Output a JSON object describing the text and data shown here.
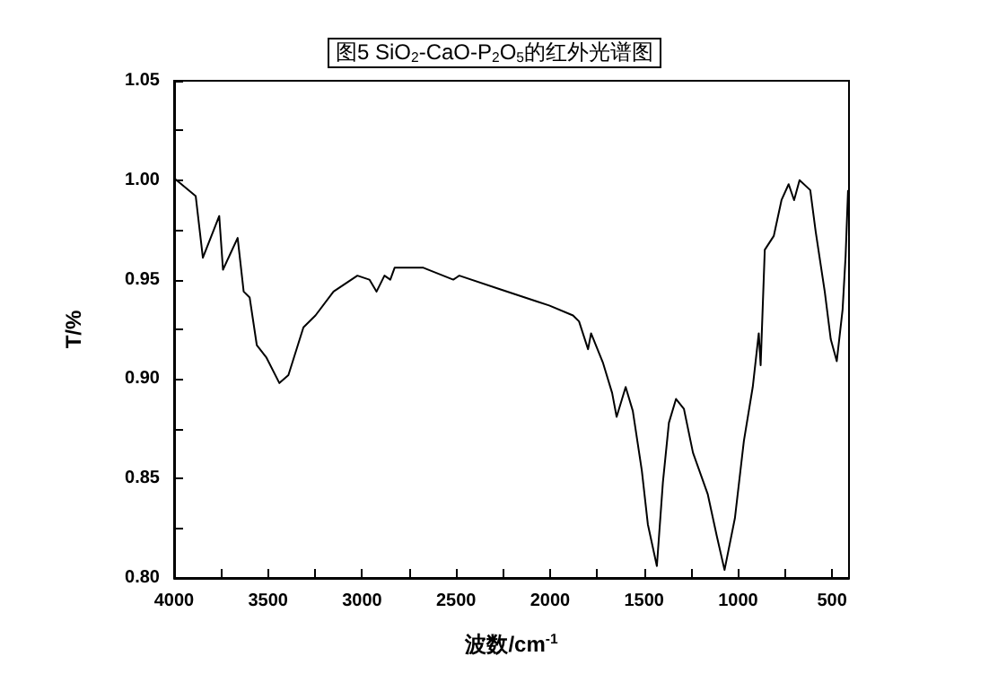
{
  "chart_data": {
    "type": "line",
    "title": "图5 SiO$_{2}$-CaO-P$_{2}$O$_{5}$的红外光谱图",
    "xlabel": "波数/cm$^{-1}$",
    "ylabel": "T/%",
    "xlim": [
      4000,
      410
    ],
    "xticks": [
      4000,
      3500,
      3000,
      2500,
      2000,
      1500,
      1000,
      500,
      {
        "value": 3750,
        "label": null
      },
      {
        "value": 3250,
        "label": null
      },
      {
        "value": 2750,
        "label": null
      },
      {
        "value": 2250,
        "label": null
      },
      {
        "value": 1750,
        "label": null
      },
      {
        "value": 1250,
        "label": null
      },
      {
        "value": 750,
        "label": null
      }
    ],
    "ylim": [
      0.8,
      1.05
    ],
    "yticks": [
      {
        "value": 0.8,
        "label": "0.80"
      },
      {
        "value": 0.85,
        "label": "0.85"
      },
      {
        "value": 0.9,
        "label": "0.90"
      },
      {
        "value": 0.95,
        "label": "0.95"
      },
      {
        "value": 1.0,
        "label": "1.00"
      },
      {
        "value": 1.05,
        "label": "1.05"
      },
      {
        "value": 0.825,
        "label": null
      },
      {
        "value": 0.875,
        "label": null
      },
      {
        "value": 0.925,
        "label": null
      },
      {
        "value": 0.975,
        "label": null
      },
      {
        "value": 1.025,
        "label": null
      }
    ],
    "grid": false,
    "marker": "none",
    "line_style": "solid",
    "series": [
      {
        "color": "#000000",
        "x": [
          4000,
          3885,
          3847,
          3760,
          3740,
          3662,
          3630,
          3598,
          3560,
          3510,
          3440,
          3392,
          3312,
          3248,
          3152,
          3025,
          2961,
          2923,
          2881,
          2850,
          2827,
          2674,
          2515,
          2483,
          2260,
          2069,
          2005,
          1878,
          1846,
          1798,
          1782,
          1718,
          1670,
          1646,
          1598,
          1560,
          1512,
          1480,
          1432,
          1400,
          1368,
          1330,
          1288,
          1240,
          1161,
          1113,
          1072,
          1017,
          969,
          922,
          890,
          880,
          858,
          810,
          769,
          731,
          702,
          673,
          616,
          587,
          539,
          507,
          475,
          444,
          428,
          415
        ],
        "values": [
          1.001,
          0.992,
          0.961,
          0.982,
          0.955,
          0.971,
          0.944,
          0.941,
          0.917,
          0.911,
          0.898,
          0.902,
          0.926,
          0.932,
          0.944,
          0.952,
          0.95,
          0.944,
          0.952,
          0.95,
          0.956,
          0.956,
          0.95,
          0.952,
          0.945,
          0.939,
          0.937,
          0.932,
          0.929,
          0.915,
          0.923,
          0.908,
          0.893,
          0.881,
          0.896,
          0.884,
          0.854,
          0.827,
          0.806,
          0.848,
          0.878,
          0.89,
          0.885,
          0.863,
          0.842,
          0.821,
          0.804,
          0.83,
          0.869,
          0.896,
          0.923,
          0.907,
          0.965,
          0.972,
          0.99,
          0.998,
          0.99,
          1.0,
          0.995,
          0.974,
          0.944,
          0.92,
          0.909,
          0.935,
          0.962,
          0.995
        ]
      }
    ]
  }
}
